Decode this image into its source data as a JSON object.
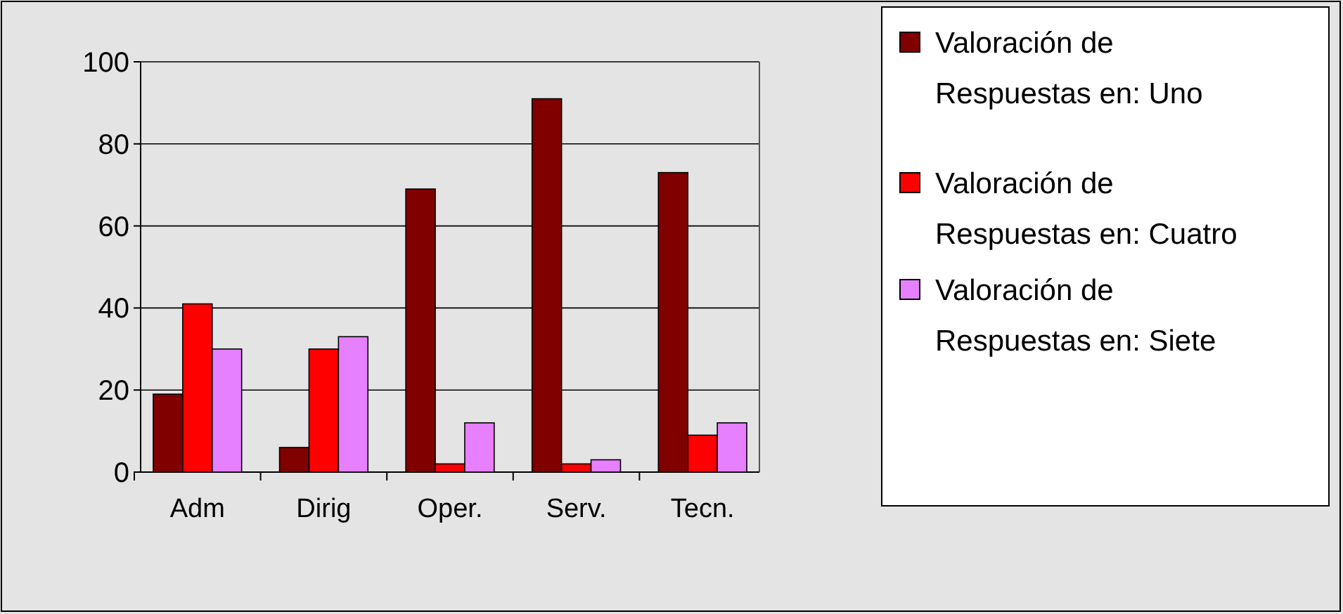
{
  "chart_data": {
    "type": "bar",
    "categories": [
      "Adm",
      "Dirig",
      "Oper.",
      "Serv.",
      "Tecn."
    ],
    "series": [
      {
        "name": "Valoración de Respuestas en: Uno",
        "color": "#800000",
        "values": [
          19,
          6,
          69,
          91,
          73
        ]
      },
      {
        "name": "Valoración de Respuestas en: Cuatro",
        "color": "#ff0000",
        "values": [
          41,
          30,
          2,
          2,
          9
        ]
      },
      {
        "name": "Valoración de Respuestas en: Siete",
        "color": "#e680ff",
        "values": [
          30,
          33,
          12,
          3,
          12
        ]
      }
    ],
    "ylim": [
      0,
      100
    ],
    "yticks": [
      0,
      20,
      40,
      60,
      80,
      100
    ],
    "grid": "y",
    "legend": "right"
  }
}
